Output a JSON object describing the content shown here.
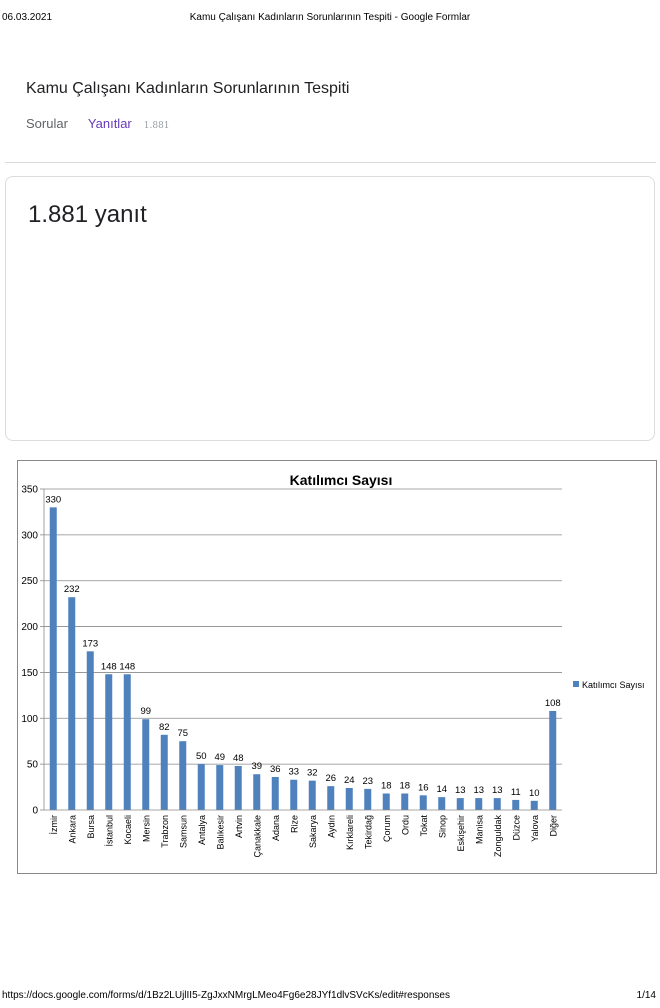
{
  "print_header": {
    "date": "06.03.2021",
    "title": "Kamu Çalışanı Kadınların Sorunlarının Tespiti - Google Formlar"
  },
  "form": {
    "title": "Kamu Çalışanı Kadınların Sorunlarının Tespiti",
    "tab_questions": "Sorular",
    "tab_responses": "Yanıtlar",
    "responses_badge": "1.881",
    "response_count_text": "1.881 yanıt"
  },
  "chart_data": {
    "type": "bar",
    "title": "Katılımcı Sayısı",
    "categories": [
      "İzmir",
      "Ankara",
      "Bursa",
      "İstanbul",
      "Kocaeli",
      "Mersin",
      "Trabzon",
      "Samsun",
      "Antalya",
      "Balıkesir",
      "Artvin",
      "Çanakkale",
      "Adana",
      "Rize",
      "Sakarya",
      "Aydın",
      "Kırklareli",
      "Tekirdağ",
      "Çorum",
      "Ordu",
      "Tokat",
      "Sinop",
      "Eskişehir",
      "Manisa",
      "Zonguldak",
      "Düzce",
      "Yalova",
      "Diğer"
    ],
    "series": [
      {
        "name": "Katılımcı Sayısı",
        "values": [
          330,
          232,
          173,
          148,
          148,
          99,
          82,
          75,
          50,
          49,
          48,
          39,
          36,
          33,
          32,
          26,
          24,
          23,
          18,
          18,
          16,
          14,
          13,
          13,
          13,
          11,
          10,
          108
        ]
      }
    ],
    "ylim": [
      0,
      350
    ],
    "yticks": [
      0,
      50,
      100,
      150,
      200,
      250,
      300,
      350
    ],
    "grid": true,
    "legend": "right",
    "bar_color": "#4f81bd"
  },
  "print_footer": {
    "url": "https://docs.google.com/forms/d/1Bz2LUjlII5-ZgJxxNMrgLMeo4Fg6e28JYf1dlvSVcKs/edit#responses",
    "page": "1/14"
  }
}
